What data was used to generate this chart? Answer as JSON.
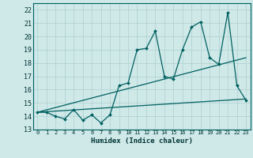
{
  "xlabel": "Humidex (Indice chaleur)",
  "bg_color": "#cfe8e8",
  "grid_color": "#afd0d0",
  "line_color": "#006060",
  "xlim": [
    -0.5,
    23.5
  ],
  "ylim": [
    13,
    22.5
  ],
  "yticks": [
    13,
    14,
    15,
    16,
    17,
    18,
    19,
    20,
    21,
    22
  ],
  "xticks": [
    0,
    1,
    2,
    3,
    4,
    5,
    6,
    7,
    8,
    9,
    10,
    11,
    12,
    13,
    14,
    15,
    16,
    17,
    18,
    19,
    20,
    21,
    22,
    23
  ],
  "series1_x": [
    0,
    1,
    2,
    3,
    4,
    5,
    6,
    7,
    8,
    9,
    10,
    11,
    12,
    13,
    14,
    15,
    16,
    17,
    18,
    19,
    20,
    21,
    22,
    23
  ],
  "series1_y": [
    14.3,
    14.3,
    14.0,
    13.8,
    14.5,
    13.7,
    14.1,
    13.5,
    14.1,
    16.3,
    16.5,
    19.0,
    19.1,
    20.4,
    17.0,
    16.8,
    19.0,
    20.7,
    21.1,
    18.4,
    17.9,
    21.8,
    16.3,
    15.2
  ],
  "series2_x": [
    0,
    23
  ],
  "series2_y": [
    14.3,
    15.3
  ],
  "series3_x": [
    0,
    23
  ],
  "series3_y": [
    14.3,
    18.4
  ]
}
